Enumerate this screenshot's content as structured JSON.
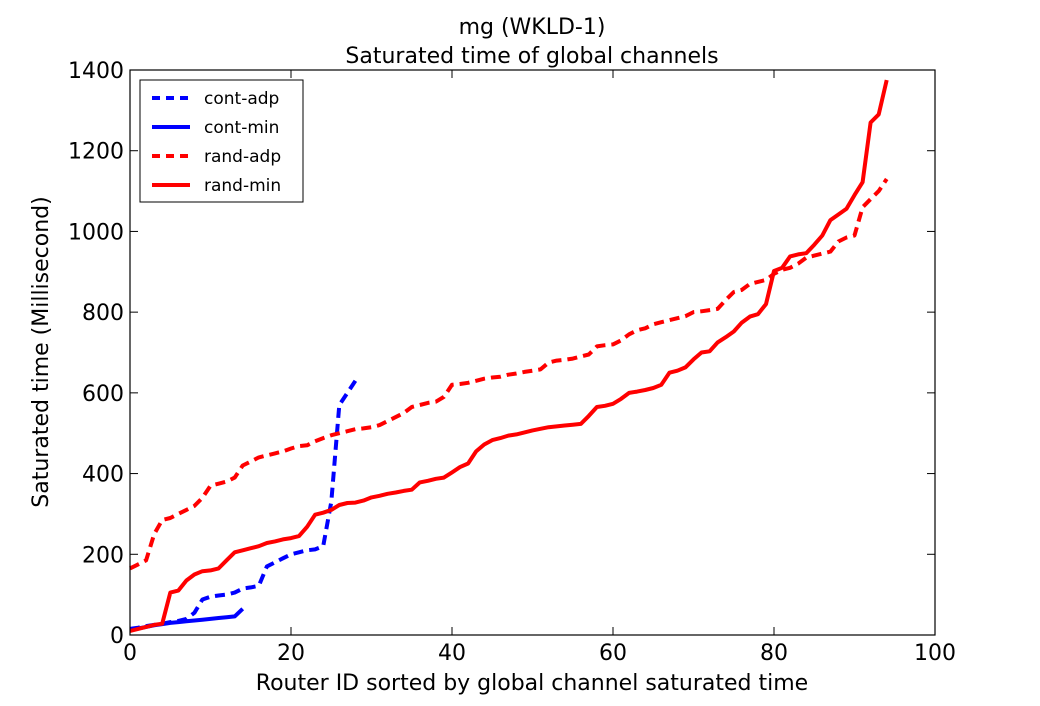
{
  "chart_data": {
    "type": "line",
    "title": "mg (WKLD-1)",
    "subtitle": "Saturated time of global channels",
    "xlabel": "Router ID sorted by global channel saturated time",
    "ylabel": "Saturated time (Millisecond)",
    "xlim": [
      0,
      100
    ],
    "ylim": [
      0,
      1400
    ],
    "xticks": [
      0,
      20,
      40,
      60,
      80,
      100
    ],
    "yticks": [
      0,
      200,
      400,
      600,
      800,
      1000,
      1200,
      1400
    ],
    "grid": false,
    "legend_position": "top-left",
    "series": [
      {
        "name": "cont-adp",
        "color": "#0000ff",
        "dash": "dashed",
        "x": [
          0,
          1,
          2,
          3,
          4,
          5,
          6,
          7,
          8,
          9,
          10,
          11,
          12,
          13,
          14,
          15,
          16,
          17,
          18,
          19,
          20,
          21,
          22,
          23,
          24,
          25,
          26,
          27,
          28
        ],
        "y": [
          15,
          18,
          22,
          25,
          28,
          32,
          35,
          40,
          55,
          88,
          95,
          98,
          100,
          105,
          115,
          118,
          122,
          170,
          180,
          190,
          200,
          205,
          210,
          212,
          220,
          330,
          570,
          600,
          630
        ]
      },
      {
        "name": "cont-min",
        "color": "#0000ff",
        "dash": "solid",
        "x": [
          0,
          1,
          2,
          3,
          4,
          5,
          6,
          7,
          8,
          9,
          10,
          11,
          12,
          13,
          14
        ],
        "y": [
          12,
          16,
          20,
          24,
          27,
          30,
          32,
          34,
          36,
          38,
          40,
          42,
          44,
          46,
          65
        ]
      },
      {
        "name": "rand-adp",
        "color": "#ff0000",
        "dash": "dashed",
        "x": [
          0,
          1,
          2,
          3,
          4,
          5,
          6,
          7,
          8,
          9,
          10,
          11,
          12,
          13,
          14,
          15,
          16,
          17,
          18,
          19,
          20,
          21,
          22,
          23,
          24,
          25,
          26,
          27,
          28,
          29,
          30,
          31,
          32,
          33,
          34,
          35,
          36,
          37,
          38,
          39,
          40,
          41,
          42,
          43,
          44,
          45,
          46,
          47,
          48,
          49,
          50,
          51,
          52,
          53,
          54,
          55,
          56,
          57,
          58,
          59,
          60,
          61,
          62,
          63,
          64,
          65,
          66,
          67,
          68,
          69,
          70,
          71,
          72,
          73,
          74,
          75,
          76,
          77,
          78,
          79,
          80,
          81,
          82,
          83,
          84,
          85,
          86,
          87,
          88,
          89,
          90,
          91,
          92,
          93,
          94
        ],
        "y": [
          165,
          175,
          185,
          250,
          285,
          290,
          300,
          310,
          320,
          340,
          370,
          375,
          380,
          390,
          420,
          430,
          440,
          445,
          450,
          455,
          462,
          468,
          470,
          480,
          488,
          495,
          500,
          505,
          510,
          512,
          515,
          520,
          530,
          540,
          550,
          565,
          570,
          575,
          578,
          590,
          620,
          622,
          625,
          630,
          635,
          638,
          640,
          645,
          648,
          652,
          655,
          658,
          675,
          680,
          682,
          685,
          690,
          695,
          715,
          718,
          720,
          730,
          745,
          755,
          760,
          770,
          775,
          780,
          785,
          790,
          800,
          802,
          805,
          808,
          830,
          850,
          855,
          870,
          875,
          880,
          895,
          905,
          910,
          920,
          935,
          940,
          945,
          950,
          975,
          985,
          990,
          1060,
          1080,
          1100,
          1130
        ]
      },
      {
        "name": "rand-min",
        "color": "#ff0000",
        "dash": "solid",
        "x": [
          0,
          1,
          2,
          3,
          4,
          5,
          6,
          7,
          8,
          9,
          10,
          11,
          12,
          13,
          14,
          15,
          16,
          17,
          18,
          19,
          20,
          21,
          22,
          23,
          24,
          25,
          26,
          27,
          28,
          29,
          30,
          31,
          32,
          33,
          34,
          35,
          36,
          37,
          38,
          39,
          40,
          41,
          42,
          43,
          44,
          45,
          46,
          47,
          48,
          49,
          50,
          51,
          52,
          53,
          54,
          55,
          56,
          57,
          58,
          59,
          60,
          61,
          62,
          63,
          64,
          65,
          66,
          67,
          68,
          69,
          70,
          71,
          72,
          73,
          74,
          75,
          76,
          77,
          78,
          79,
          80,
          81,
          82,
          83,
          84,
          85,
          86,
          87,
          88,
          89,
          90,
          91,
          92,
          93,
          94
        ],
        "y": [
          10,
          15,
          20,
          25,
          28,
          105,
          110,
          135,
          150,
          158,
          160,
          165,
          185,
          205,
          210,
          215,
          220,
          228,
          232,
          237,
          240,
          245,
          268,
          298,
          303,
          310,
          322,
          327,
          328,
          333,
          341,
          345,
          350,
          353,
          357,
          360,
          378,
          382,
          387,
          390,
          403,
          416,
          425,
          455,
          472,
          483,
          488,
          494,
          497,
          502,
          507,
          511,
          515,
          517,
          519,
          521,
          523,
          543,
          565,
          568,
          573,
          585,
          600,
          603,
          607,
          612,
          620,
          650,
          655,
          663,
          683,
          700,
          703,
          725,
          738,
          752,
          774,
          789,
          795,
          820,
          902,
          910,
          938,
          943,
          946,
          967,
          990,
          1028,
          1042,
          1056,
          1090,
          1122,
          1270,
          1290,
          1375
        ]
      }
    ]
  }
}
